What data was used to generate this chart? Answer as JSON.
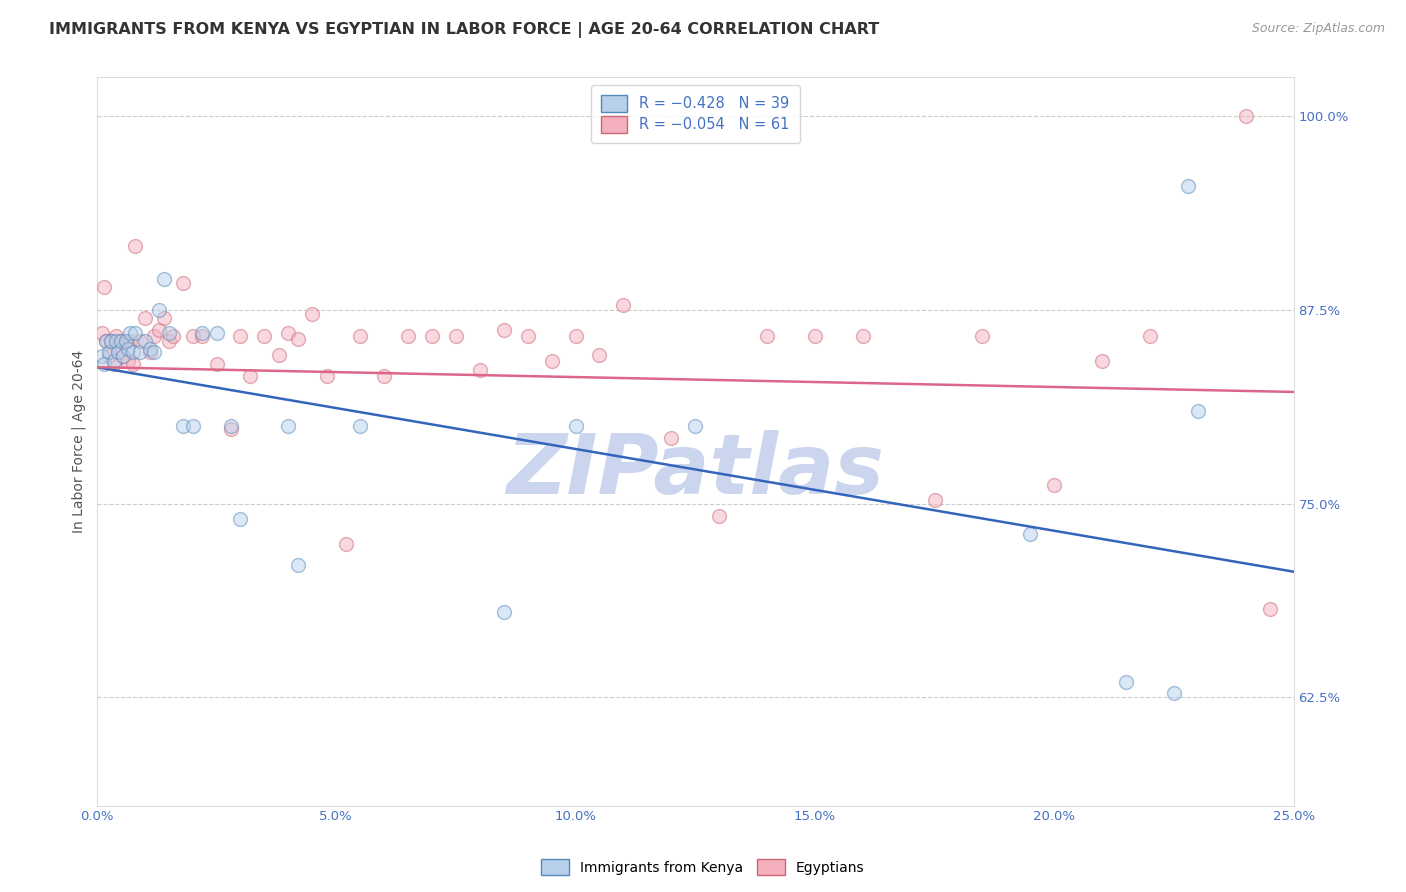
{
  "title": "IMMIGRANTS FROM KENYA VS EGYPTIAN IN LABOR FORCE | AGE 20-64 CORRELATION CHART",
  "source": "Source: ZipAtlas.com",
  "ylabel": "In Labor Force | Age 20-64",
  "xlim": [
    0.0,
    0.25
  ],
  "ylim": [
    0.555,
    1.025
  ],
  "yticks": [
    0.625,
    0.75,
    0.875,
    1.0
  ],
  "ytick_labels": [
    "62.5%",
    "75.0%",
    "87.5%",
    "100.0%"
  ],
  "xticks": [
    0.0,
    0.05,
    0.1,
    0.15,
    0.2,
    0.25
  ],
  "xtick_labels": [
    "0.0%",
    "5.0%",
    "10.0%",
    "15.0%",
    "20.0%",
    "25.0%"
  ],
  "kenya_color": "#b8d0ea",
  "egypt_color": "#f5b0be",
  "kenya_edge": "#5588bb",
  "egypt_edge": "#cc6677",
  "kenya_x": [
    0.001,
    0.0015,
    0.002,
    0.0025,
    0.003,
    0.0035,
    0.004,
    0.0045,
    0.005,
    0.0055,
    0.006,
    0.0065,
    0.007,
    0.0075,
    0.008,
    0.009,
    0.01,
    0.011,
    0.012,
    0.013,
    0.014,
    0.015,
    0.018,
    0.02,
    0.022,
    0.025,
    0.028,
    0.03,
    0.04,
    0.042,
    0.055,
    0.085,
    0.1,
    0.125,
    0.195,
    0.215,
    0.225,
    0.228,
    0.23
  ],
  "kenya_y": [
    0.845,
    0.84,
    0.855,
    0.848,
    0.855,
    0.842,
    0.855,
    0.848,
    0.855,
    0.845,
    0.855,
    0.85,
    0.86,
    0.848,
    0.86,
    0.848,
    0.855,
    0.85,
    0.848,
    0.875,
    0.895,
    0.86,
    0.8,
    0.8,
    0.86,
    0.86,
    0.8,
    0.74,
    0.8,
    0.71,
    0.8,
    0.68,
    0.8,
    0.8,
    0.73,
    0.635,
    0.628,
    0.955,
    0.81
  ],
  "egypt_x": [
    0.001,
    0.0015,
    0.002,
    0.0025,
    0.003,
    0.0035,
    0.004,
    0.0045,
    0.005,
    0.0055,
    0.006,
    0.0065,
    0.007,
    0.0075,
    0.008,
    0.009,
    0.01,
    0.011,
    0.012,
    0.013,
    0.014,
    0.015,
    0.016,
    0.018,
    0.02,
    0.022,
    0.025,
    0.028,
    0.03,
    0.032,
    0.035,
    0.038,
    0.04,
    0.042,
    0.045,
    0.048,
    0.052,
    0.055,
    0.06,
    0.065,
    0.07,
    0.075,
    0.08,
    0.085,
    0.09,
    0.095,
    0.1,
    0.105,
    0.11,
    0.12,
    0.13,
    0.14,
    0.15,
    0.16,
    0.175,
    0.185,
    0.2,
    0.21,
    0.22,
    0.24,
    0.245
  ],
  "egypt_y": [
    0.86,
    0.89,
    0.855,
    0.845,
    0.855,
    0.84,
    0.858,
    0.848,
    0.855,
    0.845,
    0.855,
    0.842,
    0.855,
    0.84,
    0.916,
    0.855,
    0.87,
    0.848,
    0.858,
    0.862,
    0.87,
    0.855,
    0.858,
    0.892,
    0.858,
    0.858,
    0.84,
    0.798,
    0.858,
    0.832,
    0.858,
    0.846,
    0.86,
    0.856,
    0.872,
    0.832,
    0.724,
    0.858,
    0.832,
    0.858,
    0.858,
    0.858,
    0.836,
    0.862,
    0.858,
    0.842,
    0.858,
    0.846,
    0.878,
    0.792,
    0.742,
    0.858,
    0.858,
    0.858,
    0.752,
    0.858,
    0.762,
    0.842,
    0.858,
    1.0,
    0.682
  ],
  "kenya_trend_x": [
    0.0,
    0.25
  ],
  "kenya_trend_y": [
    0.838,
    0.706
  ],
  "egypt_trend_x": [
    0.0,
    0.25
  ],
  "egypt_trend_y": [
    0.838,
    0.822
  ],
  "background_color": "#ffffff",
  "grid_color": "#cccccc",
  "axis_color": "#4472c4",
  "title_color": "#333333",
  "title_fontsize": 11.5,
  "label_fontsize": 10,
  "tick_fontsize": 9.5,
  "legend_fontsize": 10.5,
  "marker_size": 100,
  "marker_alpha": 0.5,
  "watermark": "ZIPatlas",
  "watermark_color": "#ccd5ee",
  "watermark_fontsize": 60
}
